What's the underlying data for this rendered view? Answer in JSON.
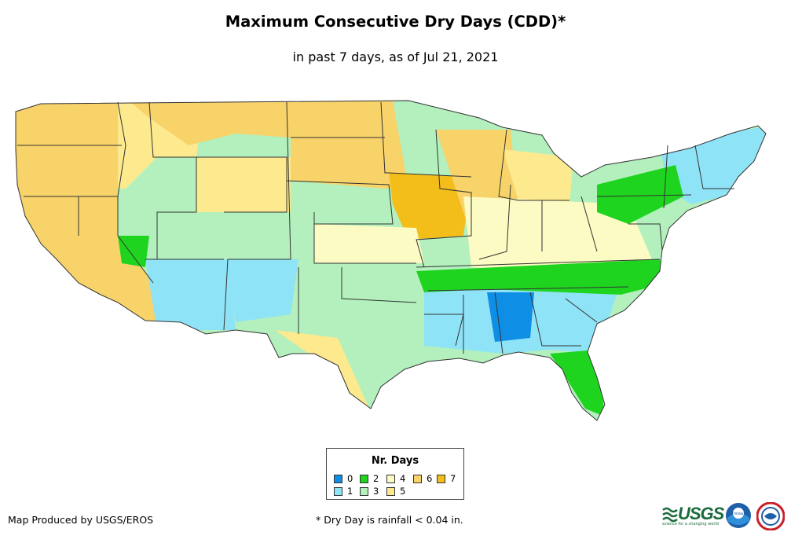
{
  "title": "Maximum Consecutive Dry Days (CDD)*",
  "subtitle": "in past 7 days, as of Jul 21, 2021",
  "legend": {
    "title": "Nr. Days",
    "items": [
      {
        "label": "0",
        "color": "#0f8ee6"
      },
      {
        "label": "1",
        "color": "#8fe3f7"
      },
      {
        "label": "2",
        "color": "#1fd41f"
      },
      {
        "label": "3",
        "color": "#b3f0bd"
      },
      {
        "label": "4",
        "color": "#fbfbc3"
      },
      {
        "label": "5",
        "color": "#fde98e"
      },
      {
        "label": "6",
        "color": "#f8d36a"
      },
      {
        "label": "7",
        "color": "#f3bd1a"
      }
    ]
  },
  "credit": "Map Produced by USGS/EROS",
  "footnote": "* Dry Day is rainfall < 0.04 in.",
  "logos": {
    "usgs": "USGS",
    "usgs_tagline": "science for a changing world",
    "noaa": "noaa"
  },
  "colors": {
    "state_border": "#333333",
    "background": "#ffffff"
  }
}
